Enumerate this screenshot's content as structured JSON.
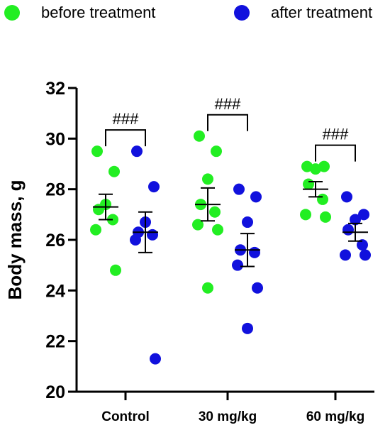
{
  "legend": {
    "items": [
      {
        "label": "before treatment",
        "color": "#22ee22"
      },
      {
        "label": "after treatment",
        "color": "#1111dd"
      }
    ]
  },
  "chart_data": {
    "type": "scatter",
    "title": "",
    "ylabel": "Body mass, g",
    "xlabel": "",
    "ylim": [
      20,
      32
    ],
    "yticks": [
      20,
      22,
      24,
      26,
      28,
      30,
      32
    ],
    "categories": [
      "Control",
      "30 mg/kg",
      "60 mg/kg"
    ],
    "grid": false,
    "legend_position": "top",
    "series": [
      {
        "name": "before treatment",
        "color": "#22ee22",
        "points": [
          [
            29.5,
            28.7,
            27.4,
            27.2,
            26.8,
            26.4,
            24.8
          ],
          [
            30.1,
            29.5,
            28.4,
            27.4,
            27.1,
            26.6,
            26.4,
            24.1
          ],
          [
            28.9,
            28.9,
            28.8,
            28.2,
            27.6,
            27.0,
            26.9
          ]
        ],
        "mean": [
          27.3,
          27.4,
          28.0
        ],
        "sem": [
          0.5,
          0.65,
          0.3
        ]
      },
      {
        "name": "after treatment",
        "color": "#1111dd",
        "points": [
          [
            29.5,
            28.1,
            26.7,
            26.3,
            26.2,
            26.0,
            21.3
          ],
          [
            28.0,
            27.7,
            26.7,
            25.6,
            25.5,
            25.0,
            24.1,
            22.5
          ],
          [
            27.7,
            27.0,
            26.8,
            26.4,
            25.8,
            25.4,
            25.4
          ]
        ],
        "mean": [
          26.3,
          25.6,
          26.3
        ],
        "sem": [
          0.8,
          0.65,
          0.35
        ]
      }
    ],
    "annotations": [
      {
        "text": "###",
        "group": 0
      },
      {
        "text": "###",
        "group": 1
      },
      {
        "text": "###",
        "group": 2
      }
    ]
  }
}
